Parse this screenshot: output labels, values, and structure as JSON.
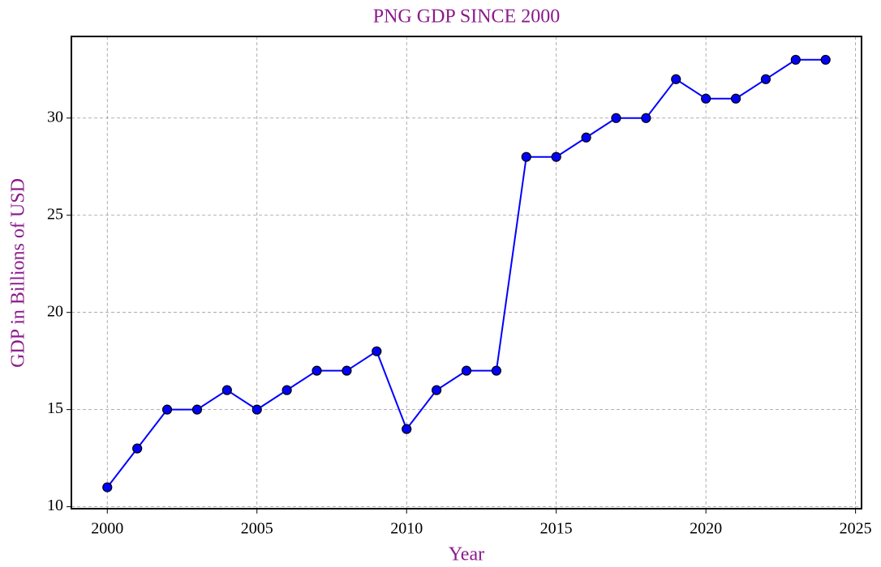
{
  "chart_data": {
    "type": "line",
    "title": "PNG GDP SINCE 2000",
    "xlabel": "Year",
    "ylabel": "GDP in Billions of USD",
    "x": [
      2000,
      2001,
      2002,
      2003,
      2004,
      2005,
      2006,
      2007,
      2008,
      2009,
      2010,
      2011,
      2012,
      2013,
      2014,
      2015,
      2016,
      2017,
      2018,
      2019,
      2020,
      2021,
      2022,
      2023,
      2024
    ],
    "series": [
      {
        "name": "GDP",
        "color": "#0000ff",
        "marker_color": "#0000ff",
        "values": [
          11,
          13,
          15,
          15,
          16,
          15,
          16,
          17,
          17,
          18,
          14,
          16,
          17,
          17,
          28,
          28,
          29,
          30,
          30,
          32,
          31,
          31,
          32,
          33,
          33
        ]
      }
    ],
    "xlim": [
      1998.8,
      2025.2
    ],
    "ylim": [
      9.9,
      34.2
    ],
    "xticks": [
      2000,
      2005,
      2010,
      2015,
      2020,
      2025
    ],
    "yticks": [
      10,
      15,
      20,
      25,
      30
    ],
    "grid": true
  }
}
